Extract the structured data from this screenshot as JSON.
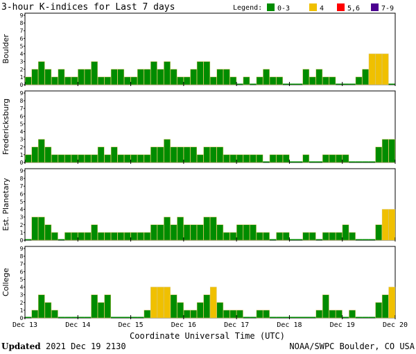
{
  "header": {
    "title": "3-hour K-indices for Last 7 days",
    "legend_label": "Legend:",
    "legend": [
      {
        "label": "0-3",
        "color": "#008c00"
      },
      {
        "label": "4",
        "color": "#f0c000"
      },
      {
        "label": "5,6",
        "color": "#ff0000"
      },
      {
        "label": "7-9",
        "color": "#4b0090"
      }
    ]
  },
  "footer": {
    "updated_label": "Updated",
    "updated_value": "2021 Dec 19 2130",
    "source": "NOAA/SWPC Boulder, CO USA"
  },
  "chart_data": {
    "type": "bar",
    "xlabel": "Coordinate Universal Time (UTC)",
    "x_tick_labels": [
      "Dec 13",
      "Dec 14",
      "Dec 15",
      "Dec 16",
      "Dec 17",
      "Dec 18",
      "Dec 19",
      "Dec 20"
    ],
    "ylim": [
      0,
      9
    ],
    "y_ticks": [
      "0",
      "1",
      "2",
      "3",
      "4",
      "5",
      "6",
      "7",
      "8",
      "9"
    ],
    "bars_per_day": 8,
    "color_thresholds": {
      "green": "0-3",
      "yellow": "4",
      "red": "5,6",
      "purple": "7-9"
    },
    "panels": [
      {
        "name": "Boulder",
        "values": [
          1,
          2,
          3,
          2,
          1,
          2,
          1,
          1,
          2,
          2,
          3,
          1,
          1,
          2,
          2,
          1,
          1,
          2,
          2,
          3,
          2,
          3,
          2,
          1,
          1,
          2,
          3,
          3,
          1,
          2,
          2,
          1,
          0,
          1,
          0,
          1,
          2,
          1,
          1,
          0,
          0,
          0,
          2,
          1,
          2,
          1,
          1,
          0,
          0,
          0,
          1,
          2,
          4,
          4,
          4,
          0
        ]
      },
      {
        "name": "Fredericksburg",
        "values": [
          1,
          2,
          3,
          2,
          1,
          1,
          1,
          1,
          1,
          1,
          1,
          2,
          1,
          2,
          1,
          1,
          1,
          1,
          1,
          2,
          2,
          3,
          2,
          2,
          2,
          2,
          1,
          2,
          2,
          2,
          1,
          1,
          1,
          1,
          1,
          1,
          0,
          1,
          1,
          1,
          0,
          0,
          1,
          0,
          0,
          1,
          1,
          1,
          1,
          0,
          0,
          0,
          0,
          2,
          3,
          3
        ]
      },
      {
        "name": "Est. Planetary",
        "values": [
          0,
          3,
          3,
          2,
          1,
          0,
          1,
          1,
          1,
          1,
          2,
          1,
          1,
          1,
          1,
          1,
          1,
          1,
          1,
          2,
          2,
          3,
          2,
          3,
          2,
          2,
          2,
          3,
          3,
          2,
          1,
          1,
          2,
          2,
          2,
          1,
          1,
          0,
          1,
          1,
          0,
          0,
          1,
          1,
          0,
          1,
          1,
          1,
          2,
          1,
          0,
          0,
          0,
          2,
          4,
          4
        ]
      },
      {
        "name": "College",
        "values": [
          0,
          1,
          3,
          2,
          1,
          0,
          0,
          0,
          0,
          0,
          3,
          2,
          3,
          0,
          0,
          0,
          0,
          0,
          1,
          4,
          4,
          4,
          3,
          2,
          1,
          1,
          2,
          3,
          4,
          2,
          1,
          1,
          1,
          0,
          0,
          1,
          1,
          0,
          0,
          0,
          0,
          0,
          0,
          0,
          1,
          3,
          1,
          1,
          0,
          1,
          0,
          0,
          0,
          2,
          3,
          4
        ]
      }
    ]
  }
}
